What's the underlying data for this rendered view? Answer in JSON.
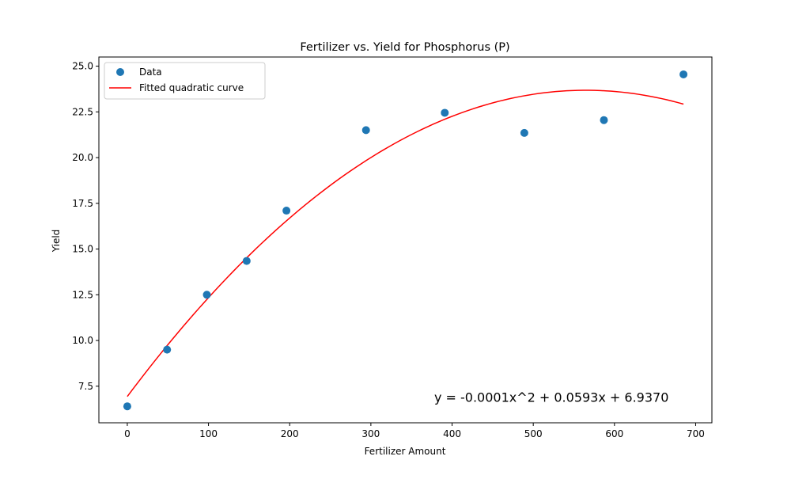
{
  "chart_data": {
    "type": "scatter",
    "title": "Fertilizer vs. Yield for Phosphorus (P)",
    "xlabel": "Fertilizer Amount",
    "ylabel": "Yield",
    "xlim": [
      -35,
      720
    ],
    "ylim": [
      5.5,
      25.5
    ],
    "xticks": [
      0,
      100,
      200,
      300,
      400,
      500,
      600,
      700
    ],
    "yticks": [
      7.5,
      10.0,
      12.5,
      15.0,
      17.5,
      20.0,
      22.5,
      25.0
    ],
    "xtick_labels": [
      "0",
      "100",
      "200",
      "300",
      "400",
      "500",
      "600",
      "700"
    ],
    "ytick_labels": [
      "7.5",
      "10.0",
      "12.5",
      "15.0",
      "17.5",
      "20.0",
      "22.5",
      "25.0"
    ],
    "grid": false,
    "legend_position": "upper-left",
    "series": [
      {
        "name": "Data",
        "kind": "scatter",
        "color": "#1f77b4",
        "x": [
          0,
          49,
          98,
          147,
          196,
          294,
          391,
          489,
          587,
          685
        ],
        "y": [
          6.4,
          9.5,
          12.5,
          14.35,
          17.1,
          21.5,
          22.45,
          21.35,
          22.05,
          24.55
        ]
      },
      {
        "name": "Fitted quadratic curve",
        "kind": "line",
        "color": "#ff0000",
        "coefficients": {
          "a": -5.25e-05,
          "b": 0.0593,
          "c": 6.937
        },
        "x_range": [
          0,
          685
        ]
      }
    ],
    "annotations": [
      {
        "text": "y = -0.0001x^2 + 0.0593x + 6.9370",
        "x": 378,
        "y": 6.9
      }
    ]
  }
}
